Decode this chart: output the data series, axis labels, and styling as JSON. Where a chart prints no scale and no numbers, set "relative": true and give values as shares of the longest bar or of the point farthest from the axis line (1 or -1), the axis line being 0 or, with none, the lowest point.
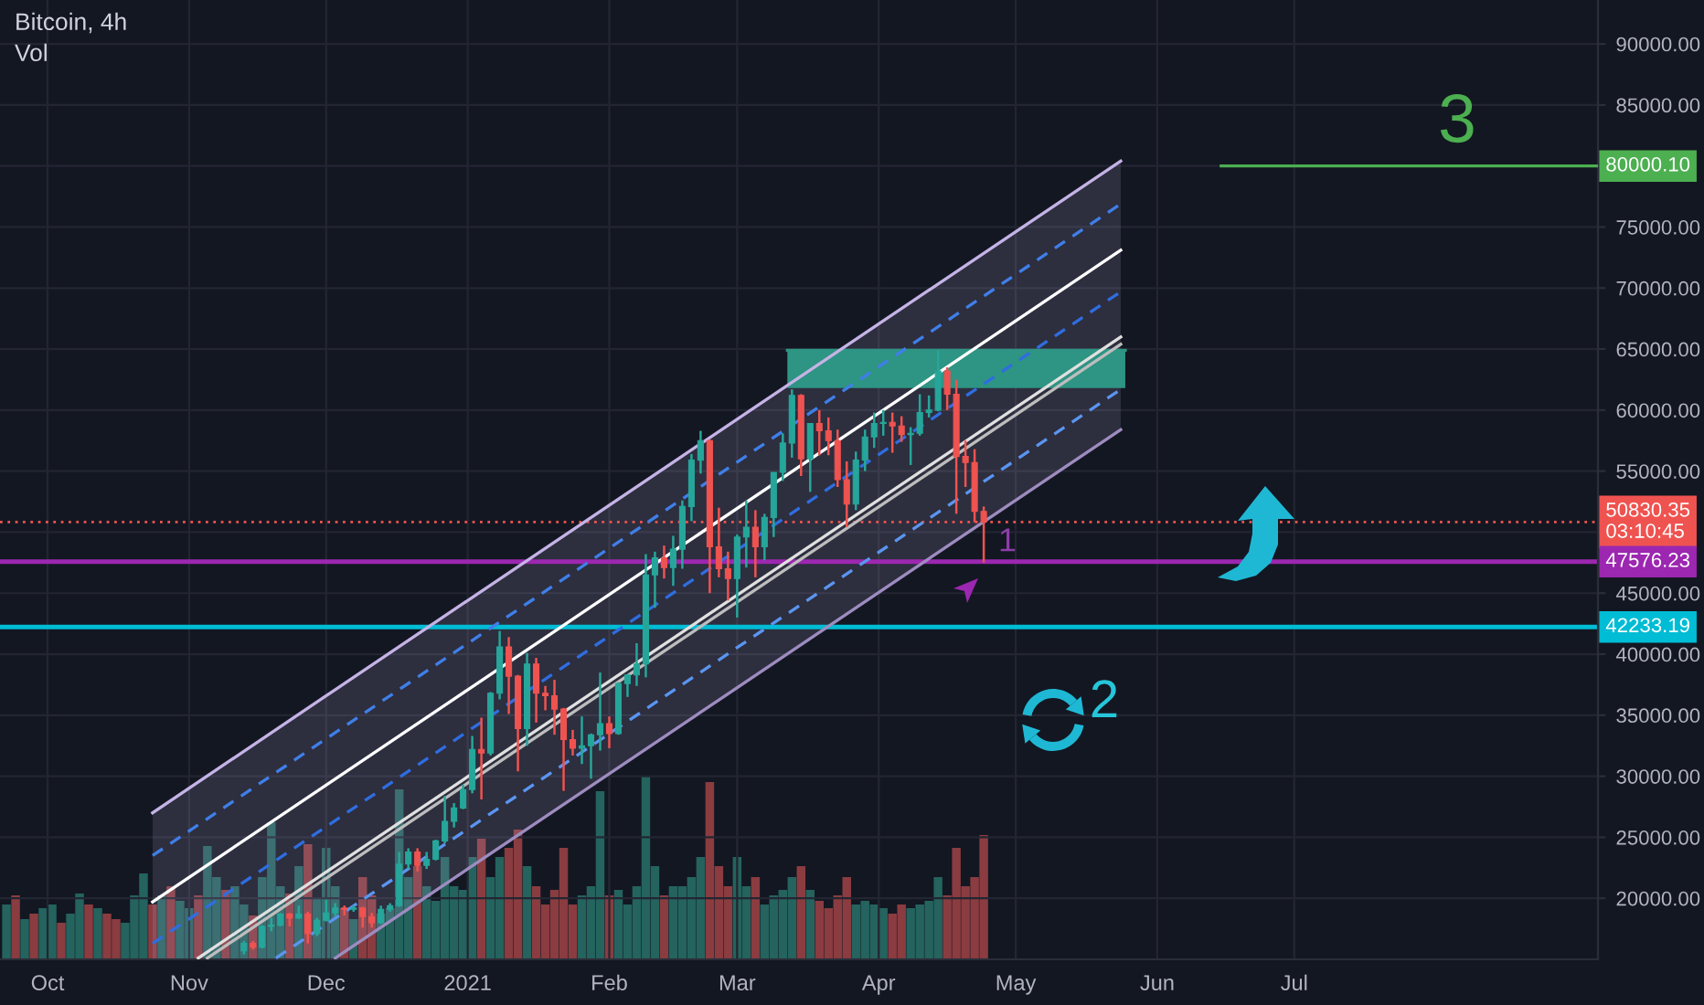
{
  "chart_data": [
    {
      "type": "candlestick",
      "title": "Bitcoin, 4h",
      "x": [
        "2020-11-13",
        "2020-11-15",
        "2020-11-17",
        "2020-11-19",
        "2020-11-21",
        "2020-11-23",
        "2020-11-25",
        "2020-11-27",
        "2020-11-29",
        "2020-12-01",
        "2020-12-03",
        "2020-12-05",
        "2020-12-07",
        "2020-12-09",
        "2020-12-11",
        "2020-12-13",
        "2020-12-15",
        "2020-12-17",
        "2020-12-19",
        "2020-12-21",
        "2020-12-23",
        "2020-12-25",
        "2020-12-27",
        "2020-12-29",
        "2020-12-31",
        "2021-01-02",
        "2021-01-04",
        "2021-01-06",
        "2021-01-08",
        "2021-01-10",
        "2021-01-12",
        "2021-01-14",
        "2021-01-16",
        "2021-01-18",
        "2021-01-20",
        "2021-01-22",
        "2021-01-24",
        "2021-01-26",
        "2021-01-28",
        "2021-01-30",
        "2021-02-01",
        "2021-02-03",
        "2021-02-05",
        "2021-02-07",
        "2021-02-09",
        "2021-02-11",
        "2021-02-13",
        "2021-02-15",
        "2021-02-17",
        "2021-02-19",
        "2021-02-21",
        "2021-02-23",
        "2021-02-25",
        "2021-02-27",
        "2021-03-01",
        "2021-03-03",
        "2021-03-05",
        "2021-03-07",
        "2021-03-09",
        "2021-03-11",
        "2021-03-13",
        "2021-03-15",
        "2021-03-17",
        "2021-03-19",
        "2021-03-21",
        "2021-03-23",
        "2021-03-25",
        "2021-03-27",
        "2021-03-29",
        "2021-03-31",
        "2021-04-02",
        "2021-04-04",
        "2021-04-06",
        "2021-04-08",
        "2021-04-10",
        "2021-04-12",
        "2021-04-14",
        "2021-04-16",
        "2021-04-18",
        "2021-04-20",
        "2021-04-22",
        "2021-04-24"
      ],
      "ohlc": [
        [
          15700,
          16500,
          15400,
          16300
        ],
        [
          16300,
          16500,
          15800,
          16000
        ],
        [
          16000,
          17800,
          15900,
          17700
        ],
        [
          17700,
          18400,
          17300,
          17800
        ],
        [
          17800,
          18800,
          17700,
          18700
        ],
        [
          18700,
          18800,
          17700,
          18400
        ],
        [
          18400,
          19400,
          18300,
          18700
        ],
        [
          18700,
          18900,
          16300,
          17100
        ],
        [
          17100,
          18400,
          16900,
          18200
        ],
        [
          18200,
          19900,
          18100,
          18800
        ],
        [
          18800,
          19600,
          18500,
          19200
        ],
        [
          19200,
          19400,
          18600,
          19100
        ],
        [
          19100,
          19400,
          18900,
          19200
        ],
        [
          19200,
          19300,
          17600,
          18500
        ],
        [
          18500,
          18800,
          17600,
          18000
        ],
        [
          18000,
          19400,
          17900,
          19100
        ],
        [
          19100,
          19600,
          18900,
          19400
        ],
        [
          19400,
          23800,
          19300,
          22800
        ],
        [
          22800,
          24100,
          22400,
          23800
        ],
        [
          23800,
          24100,
          22200,
          22700
        ],
        [
          22700,
          23800,
          22400,
          23200
        ],
        [
          23200,
          24800,
          23100,
          24700
        ],
        [
          24700,
          28400,
          24500,
          26300
        ],
        [
          26300,
          27800,
          25800,
          27400
        ],
        [
          27400,
          29300,
          27300,
          28900
        ],
        [
          28900,
          33300,
          28600,
          32200
        ],
        [
          32200,
          34800,
          28100,
          31900
        ],
        [
          31900,
          36900,
          31700,
          36800
        ],
        [
          36800,
          41900,
          36300,
          40600
        ],
        [
          40600,
          41400,
          35100,
          38200
        ],
        [
          38200,
          38300,
          30400,
          33900
        ],
        [
          33900,
          40100,
          32500,
          39200
        ],
        [
          39200,
          39700,
          34400,
          36800
        ],
        [
          36800,
          37400,
          35400,
          36600
        ],
        [
          36600,
          37900,
          33400,
          35500
        ],
        [
          35500,
          35600,
          28800,
          33000
        ],
        [
          33000,
          33800,
          31700,
          32300
        ],
        [
          32300,
          34900,
          31000,
          32500
        ],
        [
          32500,
          33500,
          29800,
          33400
        ],
        [
          33400,
          38500,
          32100,
          34300
        ],
        [
          34300,
          34900,
          32300,
          33500
        ],
        [
          33500,
          37700,
          33400,
          37600
        ],
        [
          37600,
          38300,
          36500,
          38300
        ],
        [
          38300,
          40900,
          37400,
          39200
        ],
        [
          39200,
          48200,
          38100,
          46500
        ],
        [
          46500,
          48400,
          43800,
          47900
        ],
        [
          47900,
          48900,
          46200,
          47100
        ],
        [
          47100,
          49700,
          45600,
          48600
        ],
        [
          48600,
          52600,
          47000,
          52100
        ],
        [
          52100,
          56400,
          50900,
          55900
        ],
        [
          55900,
          58300,
          54800,
          57500
        ],
        [
          57500,
          57600,
          45000,
          48800
        ],
        [
          48800,
          52000,
          46300,
          47000
        ],
        [
          47000,
          48400,
          44400,
          46200
        ],
        [
          46200,
          49800,
          43000,
          49600
        ],
        [
          49600,
          52600,
          47100,
          50400
        ],
        [
          50400,
          51800,
          46300,
          48800
        ],
        [
          48800,
          51500,
          47700,
          51200
        ],
        [
          51200,
          54900,
          49600,
          54900
        ],
        [
          54900,
          58100,
          54200,
          57300
        ],
        [
          57300,
          61700,
          56100,
          61200
        ],
        [
          61200,
          61300,
          54600,
          56000
        ],
        [
          56000,
          58900,
          53300,
          58900
        ],
        [
          58900,
          60000,
          56300,
          58300
        ],
        [
          58300,
          59400,
          56300,
          57500
        ],
        [
          57500,
          58400,
          53700,
          54300
        ],
        [
          54300,
          55800,
          50400,
          52300
        ],
        [
          52300,
          56600,
          51800,
          55900
        ],
        [
          55900,
          58400,
          55000,
          57800
        ],
        [
          57800,
          59800,
          56900,
          58900
        ],
        [
          58900,
          60000,
          57900,
          59000
        ],
        [
          59000,
          59800,
          56500,
          58700
        ],
        [
          58700,
          59500,
          57400,
          58000
        ],
        [
          58000,
          58600,
          55500,
          58100
        ],
        [
          58100,
          61300,
          57900,
          59800
        ],
        [
          59800,
          61200,
          59400,
          60000
        ],
        [
          60000,
          64900,
          59900,
          63200
        ],
        [
          63200,
          63500,
          60000,
          61300
        ],
        [
          61300,
          62500,
          51500,
          56200
        ],
        [
          56200,
          57500,
          53700,
          55700
        ],
        [
          55700,
          56800,
          50800,
          51700
        ],
        [
          51700,
          52100,
          47500,
          50830.35
        ]
      ],
      "colors": [
        "#26a69a",
        "#ef5350",
        "#26a69a",
        "#26a69a",
        "#26a69a",
        "#ef5350",
        "#26a69a",
        "#ef5350",
        "#26a69a",
        "#26a69a",
        "#26a69a",
        "#ef5350",
        "#26a69a",
        "#ef5350",
        "#ef5350",
        "#26a69a",
        "#26a69a",
        "#26a69a",
        "#26a69a",
        "#ef5350",
        "#26a69a",
        "#26a69a",
        "#26a69a",
        "#26a69a",
        "#26a69a",
        "#26a69a",
        "#ef5350",
        "#26a69a",
        "#26a69a",
        "#ef5350",
        "#ef5350",
        "#26a69a",
        "#ef5350",
        "#ef5350",
        "#ef5350",
        "#ef5350",
        "#ef5350",
        "#26a69a",
        "#26a69a",
        "#26a69a",
        "#ef5350",
        "#26a69a",
        "#26a69a",
        "#26a69a",
        "#26a69a",
        "#26a69a",
        "#ef5350",
        "#26a69a",
        "#26a69a",
        "#26a69a",
        "#26a69a",
        "#ef5350",
        "#ef5350",
        "#ef5350",
        "#26a69a",
        "#26a69a",
        "#ef5350",
        "#26a69a",
        "#26a69a",
        "#26a69a",
        "#26a69a",
        "#ef5350",
        "#26a69a",
        "#ef5350",
        "#ef5350",
        "#ef5350",
        "#ef5350",
        "#26a69a",
        "#26a69a",
        "#26a69a",
        "#26a69a",
        "#ef5350",
        "#ef5350",
        "#26a69a",
        "#26a69a",
        "#26a69a",
        "#26a69a",
        "#ef5350",
        "#ef5350",
        "#ef5350",
        "#ef5350",
        "#ef5350"
      ],
      "series": [
        {
          "type": "line",
          "color": "#c5b3e6",
          "line_style": "solid",
          "x": [
            "2020-10-24",
            "2020-12-03",
            "2021-05-24"
          ],
          "values": [
            27000,
            37100,
            80400
          ],
          "lower": [
            15000,
            15100,
            58400
          ],
          "upper": [
            27000,
            37100,
            80400
          ]
        },
        {
          "type": "step",
          "color": "#2e9483",
          "line_style": "solid",
          "x": [
            "2021-03-12",
            "2021-05-25"
          ],
          "values": [
            64900,
            64900
          ],
          "lower": [
            61800,
            61800
          ],
          "upper": [
            64900,
            64900
          ]
        },
        {
          "type": "line",
          "color": "#3f7fe8",
          "line_style": "dashed",
          "x": [
            "2020-10-24",
            "2021-05-24"
          ],
          "values": [
            23500,
            76900
          ]
        },
        {
          "type": "line",
          "color": "#ffffff",
          "line_style": "solid",
          "x": [
            "2020-10-24",
            "2021-05-24"
          ],
          "values": [
            19700,
            73100
          ]
        },
        {
          "type": "line",
          "color": "#2f6de0",
          "line_style": "dashed",
          "x": [
            "2020-10-24",
            "2021-05-24"
          ],
          "values": [
            16300,
            69700
          ]
        },
        {
          "type": "line",
          "color": "#e0e0e0",
          "line_style": "solid",
          "x": [
            "2020-11-03",
            "2021-05-24"
          ],
          "values": [
            15100,
            66000
          ]
        },
        {
          "type": "line",
          "color": "#bdbdbd",
          "line_style": "solid",
          "x": [
            "2020-11-05",
            "2021-05-24"
          ],
          "values": [
            15100,
            65400
          ]
        },
        {
          "type": "line",
          "color": "#5a95f0",
          "line_style": "dashed",
          "x": [
            "2020-11-20",
            "2021-05-24"
          ],
          "values": [
            15100,
            61700
          ]
        },
        {
          "type": "line",
          "color": "#9e8cc0",
          "line_style": "solid",
          "x": [
            "2020-12-03",
            "2021-05-24"
          ],
          "values": [
            15100,
            58400
          ]
        },
        {
          "type": "line",
          "color": "#4caf50",
          "line_style": "solid",
          "x": [
            "2021-06-15",
            "2021-09-05T12:00"
          ],
          "values": [
            80000.1,
            80000.1
          ],
          "value_labels": [
            null,
            "80000.10"
          ]
        }
      ],
      "ref_lines": [
        {
          "axis": "y",
          "value": 50830.35,
          "label": "50830.35\n03:10:45",
          "color": "#ef5350",
          "line_style": "dotted"
        },
        {
          "axis": "y",
          "value": 47576.23,
          "label": "47576.23",
          "color": "#9c27b0",
          "line_style": "solid"
        },
        {
          "axis": "y",
          "value": 42233.19,
          "label": "42233.19",
          "color": "#00bcd4",
          "line_style": "solid"
        }
      ],
      "annotations": [
        "1",
        "2",
        "3"
      ],
      "xlim": [
        "2020-09-20T14:00",
        "2021-09-05T12:00"
      ],
      "ylim": [
        15000,
        93600
      ],
      "xticks": [
        {
          "value": "2020-10-01",
          "label": "Oct"
        },
        {
          "value": "2020-11-01",
          "label": "Nov"
        },
        {
          "value": "2020-12-01",
          "label": "Dec"
        },
        {
          "value": "2021-01-01",
          "label": "2021"
        },
        {
          "value": "2021-02-01",
          "label": "Feb"
        },
        {
          "value": "2021-03-01",
          "label": "Mar"
        },
        {
          "value": "2021-04-01",
          "label": "Apr"
        },
        {
          "value": "2021-05-01",
          "label": "May"
        },
        {
          "value": "2021-06-01",
          "label": "Jun"
        },
        {
          "value": "2021-07-01",
          "label": "Jul"
        }
      ],
      "yticks": [
        {
          "value": 20000,
          "label": "20000.00"
        },
        {
          "value": 25000,
          "label": "25000.00"
        },
        {
          "value": 30000,
          "label": "30000.00"
        },
        {
          "value": 35000,
          "label": "35000.00"
        },
        {
          "value": 40000,
          "label": "40000.00"
        },
        {
          "value": 45000,
          "label": "45000.00"
        },
        {
          "value": 50000,
          "label": null
        },
        {
          "value": 55000,
          "label": "55000.00"
        },
        {
          "value": 60000,
          "label": "60000.00"
        },
        {
          "value": 65000,
          "label": "65000.00"
        },
        {
          "value": 70000,
          "label": "70000.00"
        },
        {
          "value": 75000,
          "label": "75000.00"
        },
        {
          "value": 80000,
          "label": null
        },
        {
          "value": 85000,
          "label": "85000.00"
        },
        {
          "value": 90000,
          "label": "90000.00"
        }
      ],
      "grid": true
    },
    {
      "type": "bar",
      "title": "Vol",
      "relative": true,
      "x": [
        "2020-09-22",
        "2020-09-24",
        "2020-09-26",
        "2020-09-28",
        "2020-09-30",
        "2020-10-02",
        "2020-10-04",
        "2020-10-06",
        "2020-10-08",
        "2020-10-10",
        "2020-10-12",
        "2020-10-14",
        "2020-10-16",
        "2020-10-18",
        "2020-10-20",
        "2020-10-22",
        "2020-10-24",
        "2020-10-26",
        "2020-10-28",
        "2020-10-30",
        "2020-11-01",
        "2020-11-03",
        "2020-11-05",
        "2020-11-07",
        "2020-11-09",
        "2020-11-11",
        "2020-11-13",
        "2020-11-15",
        "2020-11-17",
        "2020-11-19",
        "2020-11-21",
        "2020-11-23",
        "2020-11-25",
        "2020-11-27",
        "2020-11-29",
        "2020-12-01",
        "2020-12-03",
        "2020-12-05",
        "2020-12-07",
        "2020-12-09",
        "2020-12-11",
        "2020-12-13",
        "2020-12-15",
        "2020-12-17",
        "2020-12-19",
        "2020-12-21",
        "2020-12-23",
        "2020-12-25",
        "2020-12-27",
        "2020-12-29",
        "2020-12-31",
        "2021-01-02",
        "2021-01-04",
        "2021-01-06",
        "2021-01-08",
        "2021-01-10",
        "2021-01-12",
        "2021-01-14",
        "2021-01-16",
        "2021-01-18",
        "2021-01-20",
        "2021-01-22",
        "2021-01-24",
        "2021-01-26",
        "2021-01-28",
        "2021-01-30",
        "2021-02-01",
        "2021-02-03",
        "2021-02-05",
        "2021-02-07",
        "2021-02-09",
        "2021-02-11",
        "2021-02-13",
        "2021-02-15",
        "2021-02-17",
        "2021-02-19",
        "2021-02-21",
        "2021-02-23",
        "2021-02-25",
        "2021-02-27",
        "2021-03-01",
        "2021-03-03",
        "2021-03-05",
        "2021-03-07",
        "2021-03-09",
        "2021-03-11",
        "2021-03-13",
        "2021-03-15",
        "2021-03-17",
        "2021-03-19",
        "2021-03-21",
        "2021-03-23",
        "2021-03-25",
        "2021-03-27",
        "2021-03-29",
        "2021-03-31",
        "2021-04-02",
        "2021-04-04",
        "2021-04-06",
        "2021-04-08",
        "2021-04-10",
        "2021-04-12",
        "2021-04-14",
        "2021-04-16",
        "2021-04-18",
        "2021-04-20",
        "2021-04-22",
        "2021-04-24"
      ],
      "values": [
        0.3,
        0.35,
        0.22,
        0.25,
        0.28,
        0.3,
        0.2,
        0.25,
        0.36,
        0.3,
        0.28,
        0.25,
        0.22,
        0.2,
        0.35,
        0.47,
        0.3,
        0.35,
        0.4,
        0.32,
        0.28,
        0.35,
        0.62,
        0.45,
        0.38,
        0.4,
        0.3,
        0.24,
        0.45,
        0.75,
        0.4,
        0.36,
        0.51,
        0.63,
        0.34,
        0.61,
        0.4,
        0.28,
        0.22,
        0.45,
        0.35,
        0.25,
        0.28,
        0.93,
        0.45,
        0.51,
        0.4,
        0.32,
        0.56,
        0.4,
        0.38,
        0.56,
        0.66,
        0.45,
        0.56,
        0.61,
        0.71,
        0.51,
        0.4,
        0.3,
        0.38,
        0.61,
        0.3,
        0.35,
        0.4,
        0.92,
        0.35,
        0.38,
        0.3,
        0.4,
        1,
        0.51,
        0.35,
        0.4,
        0.4,
        0.45,
        0.56,
        0.97,
        0.51,
        0.4,
        0.56,
        0.4,
        0.45,
        0.3,
        0.35,
        0.38,
        0.45,
        0.51,
        0.38,
        0.32,
        0.28,
        0.35,
        0.45,
        0.3,
        0.32,
        0.3,
        0.28,
        0.25,
        0.3,
        0.28,
        0.3,
        0.32,
        0.45,
        0.35,
        0.61,
        0.4,
        0.45,
        0.68
      ],
      "colors": [
        "#24635e",
        "#8a3c40",
        "#24635e",
        "#8a3c40",
        "#24635e",
        "#24635e",
        "#8a3c40",
        "#24635e",
        "#24635e",
        "#8a3c40",
        "#24635e",
        "#8a3c40",
        "#8a3c40",
        "#24635e",
        "#24635e",
        "#24635e",
        "#8a3c40",
        "#24635e",
        "#8a3c40",
        "#24635e",
        "#24635e",
        "#8a3c40",
        "#24635e",
        "#24635e",
        "#8a3c40",
        "#24635e",
        "#24635e",
        "#8a3c40",
        "#24635e",
        "#24635e",
        "#24635e",
        "#8a3c40",
        "#24635e",
        "#8a3c40",
        "#24635e",
        "#24635e",
        "#24635e",
        "#8a3c40",
        "#24635e",
        "#8a3c40",
        "#8a3c40",
        "#24635e",
        "#24635e",
        "#24635e",
        "#24635e",
        "#8a3c40",
        "#24635e",
        "#24635e",
        "#24635e",
        "#24635e",
        "#24635e",
        "#24635e",
        "#8a3c40",
        "#24635e",
        "#24635e",
        "#8a3c40",
        "#8a3c40",
        "#24635e",
        "#8a3c40",
        "#8a3c40",
        "#8a3c40",
        "#8a3c40",
        "#8a3c40",
        "#24635e",
        "#24635e",
        "#24635e",
        "#8a3c40",
        "#24635e",
        "#24635e",
        "#24635e",
        "#24635e",
        "#24635e",
        "#8a3c40",
        "#24635e",
        "#24635e",
        "#24635e",
        "#24635e",
        "#8a3c40",
        "#8a3c40",
        "#8a3c40",
        "#24635e",
        "#24635e",
        "#8a3c40",
        "#24635e",
        "#24635e",
        "#24635e",
        "#24635e",
        "#8a3c40",
        "#24635e",
        "#8a3c40",
        "#8a3c40",
        "#8a3c40",
        "#8a3c40",
        "#24635e",
        "#24635e",
        "#24635e",
        "#24635e",
        "#8a3c40",
        "#8a3c40",
        "#24635e",
        "#24635e",
        "#24635e",
        "#24635e",
        "#8a3c40",
        "#8a3c40",
        "#8a3c40",
        "#8a3c40",
        "#8a3c40"
      ],
      "xlim": [
        "2020-09-20T14:00",
        "2021-09-05T12:00"
      ],
      "xticks": [
        "2020-10-01",
        "2020-11-01",
        "2020-12-01",
        "2021-01-01",
        "2021-02-01",
        "2021-03-01",
        "2021-04-01",
        "2021-05-01",
        "2021-06-01",
        "2021-07-01"
      ],
      "grid": "x",
      "tick_labels": false
    }
  ]
}
